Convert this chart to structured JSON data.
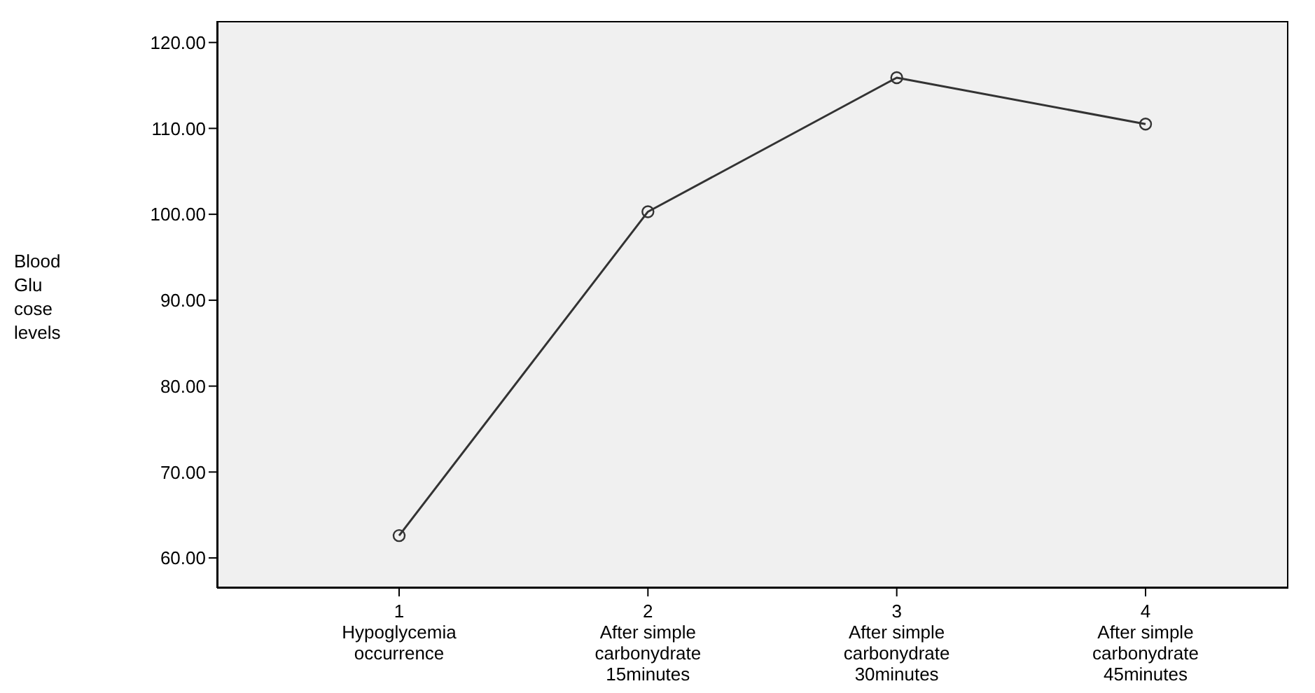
{
  "chart_data": {
    "type": "line",
    "ylabel": "Blood\nGlu\ncose\nlevels",
    "categories": [
      "1\nHypoglycemia\noccurrence",
      "2\nAfter simple\ncarbonydrate\n15minutes",
      "3\nAfter simple\ncarbonydrate\n30minutes",
      "4\nAfter simple\ncarbonydrate\n45minutes"
    ],
    "series": [
      {
        "color": "#333333",
        "values": [
          62.6,
          100.3,
          115.9,
          110.5
        ]
      }
    ],
    "ylim": [
      56.5,
      122.5
    ],
    "yticks": [
      {
        "value": 60,
        "label": "60.00"
      },
      {
        "value": 70,
        "label": "70.00"
      },
      {
        "value": 80,
        "label": "80.00"
      },
      {
        "value": 90,
        "label": "90.00"
      },
      {
        "value": 100,
        "label": "100.00"
      },
      {
        "value": 110,
        "label": "110.00"
      },
      {
        "value": 120,
        "label": "120.00"
      }
    ],
    "marker": "circle",
    "line_style": "solid",
    "grid": false,
    "legend": false
  }
}
